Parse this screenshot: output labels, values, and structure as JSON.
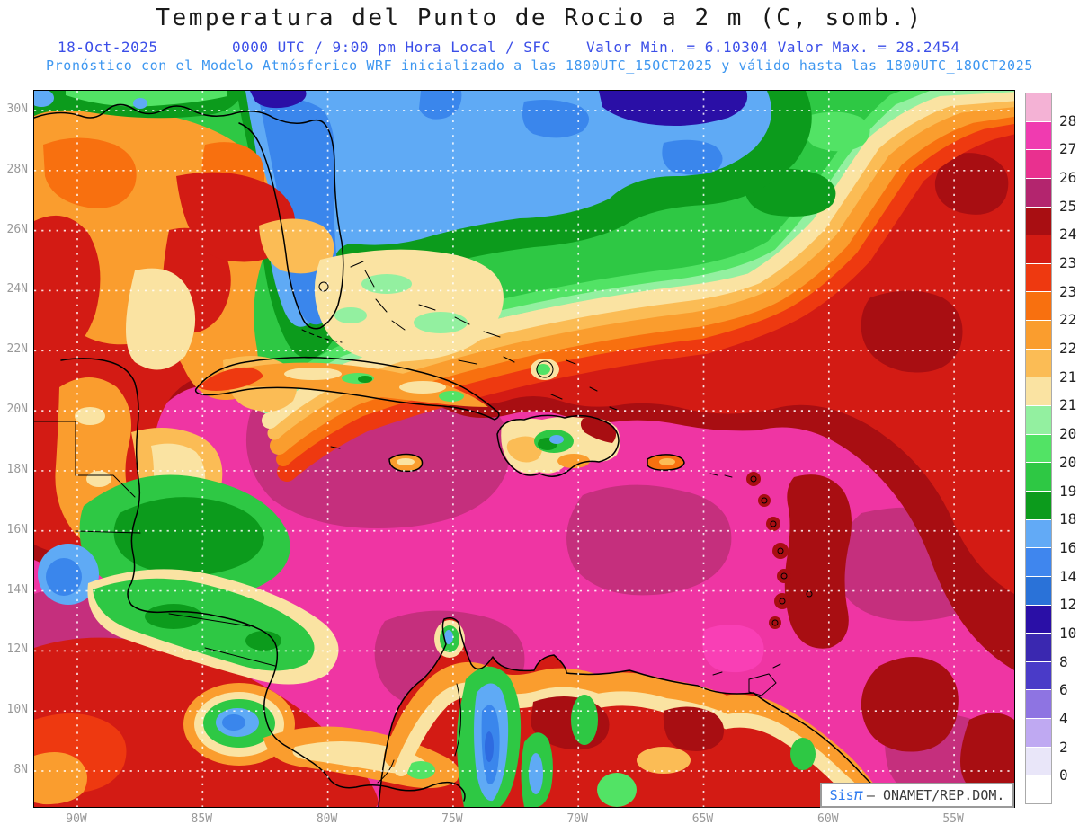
{
  "header": {
    "title": "Temperatura del Punto de Rocio a 2 m (C, somb.)",
    "date": "18-Oct-2025",
    "time_line": "0000 UTC / 9:00 pm Hora Local / SFC",
    "minmax_line": "Valor Min. = 6.10304  Valor Max. = 28.2454",
    "model_line": "Pronóstico con el Modelo Atmósferico WRF inicializado a las 1800UTC_15OCT2025 y válido hasta las  1800UTC_18OCT2025"
  },
  "attribution": {
    "brand": "Sis",
    "pi": "π",
    "org": "– ONAMET/REP.DOM."
  },
  "colors": {
    "title_text": "#1a1a1a",
    "subtitle_blue": "#3b4ee8",
    "model_line_blue": "#3e97f0",
    "axis_tick_gray": "#999999",
    "sea_pink": "#EF35A3",
    "attribution_blue": "#2e7bf0"
  },
  "chart_data": {
    "type": "heatmap",
    "title": "Temperatura del Punto de Rocio a 2 m (C, somb.)",
    "variable": "Dew point temperature at 2 m (C, shaded)",
    "valid_date": "18-Oct-2025",
    "valid_time": "0000 UTC / 9:00 pm Hora Local / SFC",
    "value_min": 6.10304,
    "value_max": 28.2454,
    "model": "WRF",
    "initialized": "1800UTC_15OCT2025",
    "valid_until": "1800UTC_18OCT2025",
    "grid": "dotted white graticule every 2 deg lat / 5 deg lon",
    "x_ticks": [
      "90W",
      "85W",
      "80W",
      "75W",
      "70W",
      "65W",
      "60W",
      "55W"
    ],
    "y_ticks": [
      "30N",
      "28N",
      "26N",
      "24N",
      "22N",
      "20N",
      "18N",
      "16N",
      "14N",
      "12N",
      "10N",
      "8N"
    ],
    "colorbar": {
      "position": "right",
      "labels_top_to_bottom": [
        "28",
        "27",
        "26",
        "25",
        "24.5",
        "23.5",
        "23",
        "22.5",
        "22",
        "21.5",
        "21",
        "20.5",
        "20",
        "19",
        "18",
        "16",
        "14",
        "12",
        "10",
        "8",
        "6",
        "4",
        "2",
        "0"
      ],
      "colors_top_to_bottom": [
        "#F4B2D5",
        "#F03BB0",
        "#E9308F",
        "#B3256E",
        "#A80E12",
        "#D31B14",
        "#EE3910",
        "#F8700F",
        "#FA9D2E",
        "#FBBC55",
        "#FAE3A2",
        "#93F0A0",
        "#52E365",
        "#2EC844",
        "#0C9B1C",
        "#62AAF6",
        "#3F86EE",
        "#2A72D8",
        "#2A0FA6",
        "#3A28B0",
        "#4A3BC8",
        "#8E74E2",
        "#BFA9F2",
        "#E9E6F9",
        "#FFFFFF"
      ]
    }
  }
}
